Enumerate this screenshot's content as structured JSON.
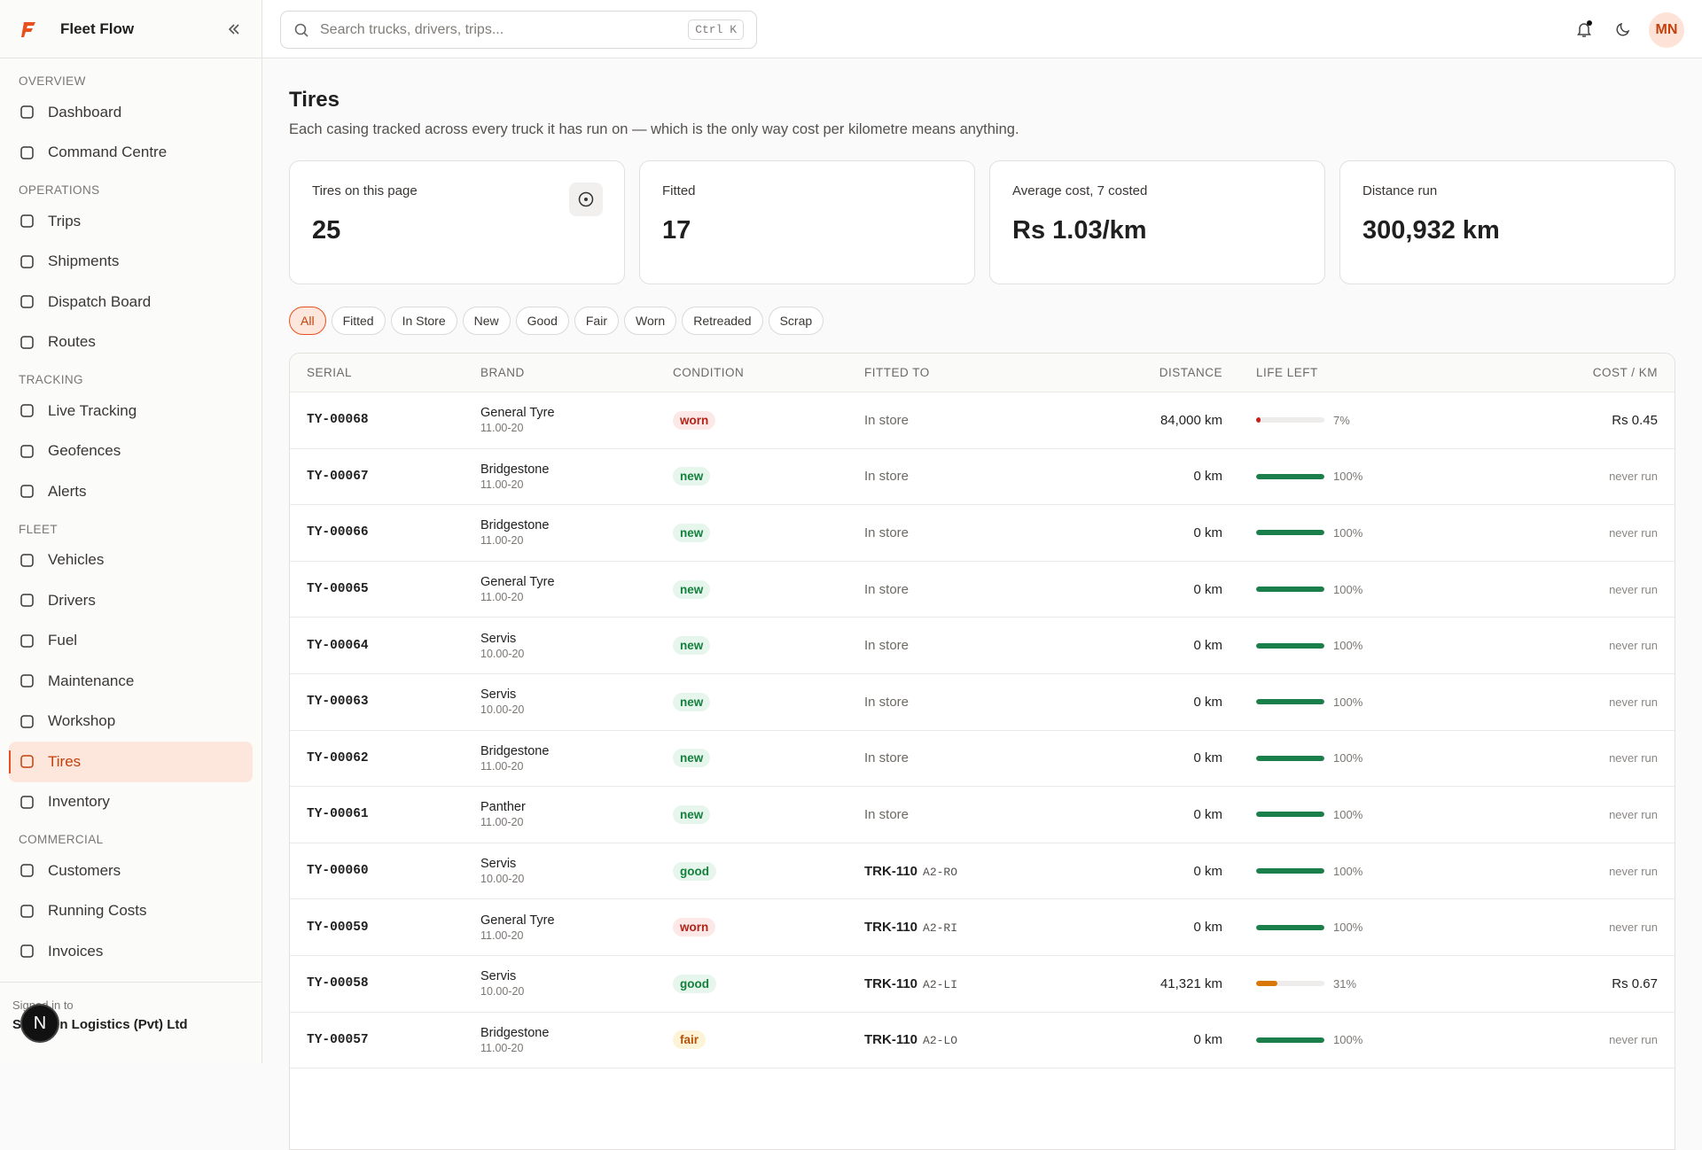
{
  "sidebar": {
    "brand": "Fleet Flow",
    "sections": [
      {
        "title": "OVERVIEW",
        "items": [
          {
            "label": "Dashboard"
          },
          {
            "label": "Command Centre"
          }
        ]
      },
      {
        "title": "OPERATIONS",
        "items": [
          {
            "label": "Trips"
          },
          {
            "label": "Shipments"
          },
          {
            "label": "Dispatch Board"
          },
          {
            "label": "Routes"
          }
        ]
      },
      {
        "title": "TRACKING",
        "items": [
          {
            "label": "Live Tracking"
          },
          {
            "label": "Geofences"
          },
          {
            "label": "Alerts"
          }
        ]
      },
      {
        "title": "FLEET",
        "items": [
          {
            "label": "Vehicles"
          },
          {
            "label": "Drivers"
          },
          {
            "label": "Fuel"
          },
          {
            "label": "Maintenance"
          },
          {
            "label": "Workshop"
          },
          {
            "label": "Tires",
            "active": true
          },
          {
            "label": "Inventory"
          }
        ]
      },
      {
        "title": "COMMERCIAL",
        "items": [
          {
            "label": "Customers"
          },
          {
            "label": "Running Costs"
          },
          {
            "label": "Invoices"
          }
        ]
      }
    ],
    "footer_label": "Signed in to",
    "org": "Shaheen Logistics (Pvt) Ltd",
    "dev_badge": "N"
  },
  "header": {
    "search_placeholder": "Search trucks, drivers, trips...",
    "shortcut": "Ctrl K",
    "avatar": "MN"
  },
  "page": {
    "title": "Tires",
    "subtitle": "Each casing tracked across every truck it has run on — which is the only way cost per kilometre means anything."
  },
  "stats": [
    {
      "label": "Tires on this page",
      "value": "25"
    },
    {
      "label": "Fitted",
      "value": "17"
    },
    {
      "label": "Average cost, 7 costed",
      "value": "Rs 1.03/km"
    },
    {
      "label": "Distance run",
      "value": "300,932 km"
    }
  ],
  "filters": [
    "All",
    "Fitted",
    "In Store",
    "New",
    "Good",
    "Fair",
    "Worn",
    "Retreaded",
    "Scrap"
  ],
  "table": {
    "columns": [
      "SERIAL",
      "BRAND",
      "CONDITION",
      "FITTED TO",
      "DISTANCE",
      "LIFE LEFT",
      "COST / KM"
    ],
    "rows": [
      {
        "serial": "TY-00068",
        "brand": "General Tyre",
        "size": "11.00-20",
        "condition": "worn",
        "fitted": "In store",
        "distance": "84,000 km",
        "life": 7,
        "life_label": "7%",
        "cost": "Rs 0.45"
      },
      {
        "serial": "TY-00067",
        "brand": "Bridgestone",
        "size": "11.00-20",
        "condition": "new",
        "fitted": "In store",
        "distance": "0 km",
        "life": 100,
        "life_label": "100%",
        "cost": "never run"
      },
      {
        "serial": "TY-00066",
        "brand": "Bridgestone",
        "size": "11.00-20",
        "condition": "new",
        "fitted": "In store",
        "distance": "0 km",
        "life": 100,
        "life_label": "100%",
        "cost": "never run"
      },
      {
        "serial": "TY-00065",
        "brand": "General Tyre",
        "size": "11.00-20",
        "condition": "new",
        "fitted": "In store",
        "distance": "0 km",
        "life": 100,
        "life_label": "100%",
        "cost": "never run"
      },
      {
        "serial": "TY-00064",
        "brand": "Servis",
        "size": "10.00-20",
        "condition": "new",
        "fitted": "In store",
        "distance": "0 km",
        "life": 100,
        "life_label": "100%",
        "cost": "never run"
      },
      {
        "serial": "TY-00063",
        "brand": "Servis",
        "size": "10.00-20",
        "condition": "new",
        "fitted": "In store",
        "distance": "0 km",
        "life": 100,
        "life_label": "100%",
        "cost": "never run"
      },
      {
        "serial": "TY-00062",
        "brand": "Bridgestone",
        "size": "11.00-20",
        "condition": "new",
        "fitted": "In store",
        "distance": "0 km",
        "life": 100,
        "life_label": "100%",
        "cost": "never run"
      },
      {
        "serial": "TY-00061",
        "brand": "Panther",
        "size": "11.00-20",
        "condition": "new",
        "fitted": "In store",
        "distance": "0 km",
        "life": 100,
        "life_label": "100%",
        "cost": "never run"
      },
      {
        "serial": "TY-00060",
        "brand": "Servis",
        "size": "10.00-20",
        "condition": "good",
        "fitted": "TRK-110",
        "position": "A2-RO",
        "distance": "0 km",
        "life": 100,
        "life_label": "100%",
        "cost": "never run"
      },
      {
        "serial": "TY-00059",
        "brand": "General Tyre",
        "size": "11.00-20",
        "condition": "worn",
        "fitted": "TRK-110",
        "position": "A2-RI",
        "distance": "0 km",
        "life": 100,
        "life_label": "100%",
        "cost": "never run"
      },
      {
        "serial": "TY-00058",
        "brand": "Servis",
        "size": "10.00-20",
        "condition": "good",
        "fitted": "TRK-110",
        "position": "A2-LI",
        "distance": "41,321 km",
        "life": 31,
        "life_label": "31%",
        "cost": "Rs 0.67"
      },
      {
        "serial": "TY-00057",
        "brand": "Bridgestone",
        "size": "11.00-20",
        "condition": "fair",
        "fitted": "TRK-110",
        "position": "A2-LO",
        "distance": "0 km",
        "life": 100,
        "life_label": "100%",
        "cost": "never run"
      }
    ]
  }
}
